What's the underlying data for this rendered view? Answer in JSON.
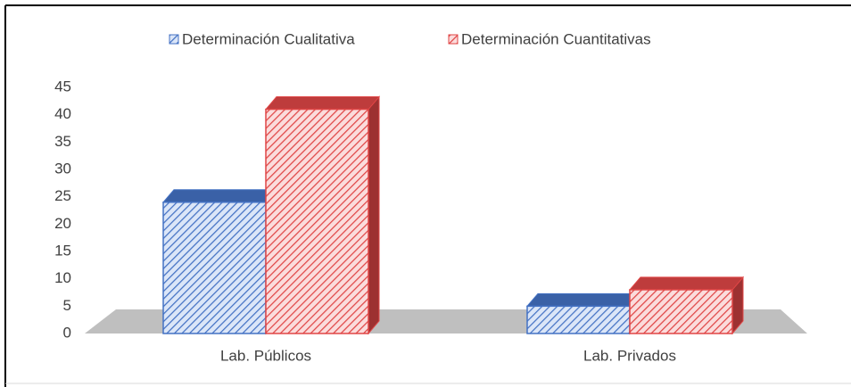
{
  "chart_data": {
    "type": "bar3d",
    "categories": [
      "Lab. Públicos",
      "Lab. Privados"
    ],
    "series": [
      {
        "name": "Determinación Cualitativa",
        "color": "#4472c4",
        "values": [
          24,
          5
        ]
      },
      {
        "name": "Determinación Cuantitativas",
        "color": "#e04646",
        "values": [
          41,
          8
        ]
      }
    ],
    "ylim": [
      0,
      45
    ],
    "yticks": [
      0,
      5,
      10,
      15,
      20,
      25,
      30,
      35,
      40,
      45
    ],
    "legend": "top",
    "grid": false
  }
}
